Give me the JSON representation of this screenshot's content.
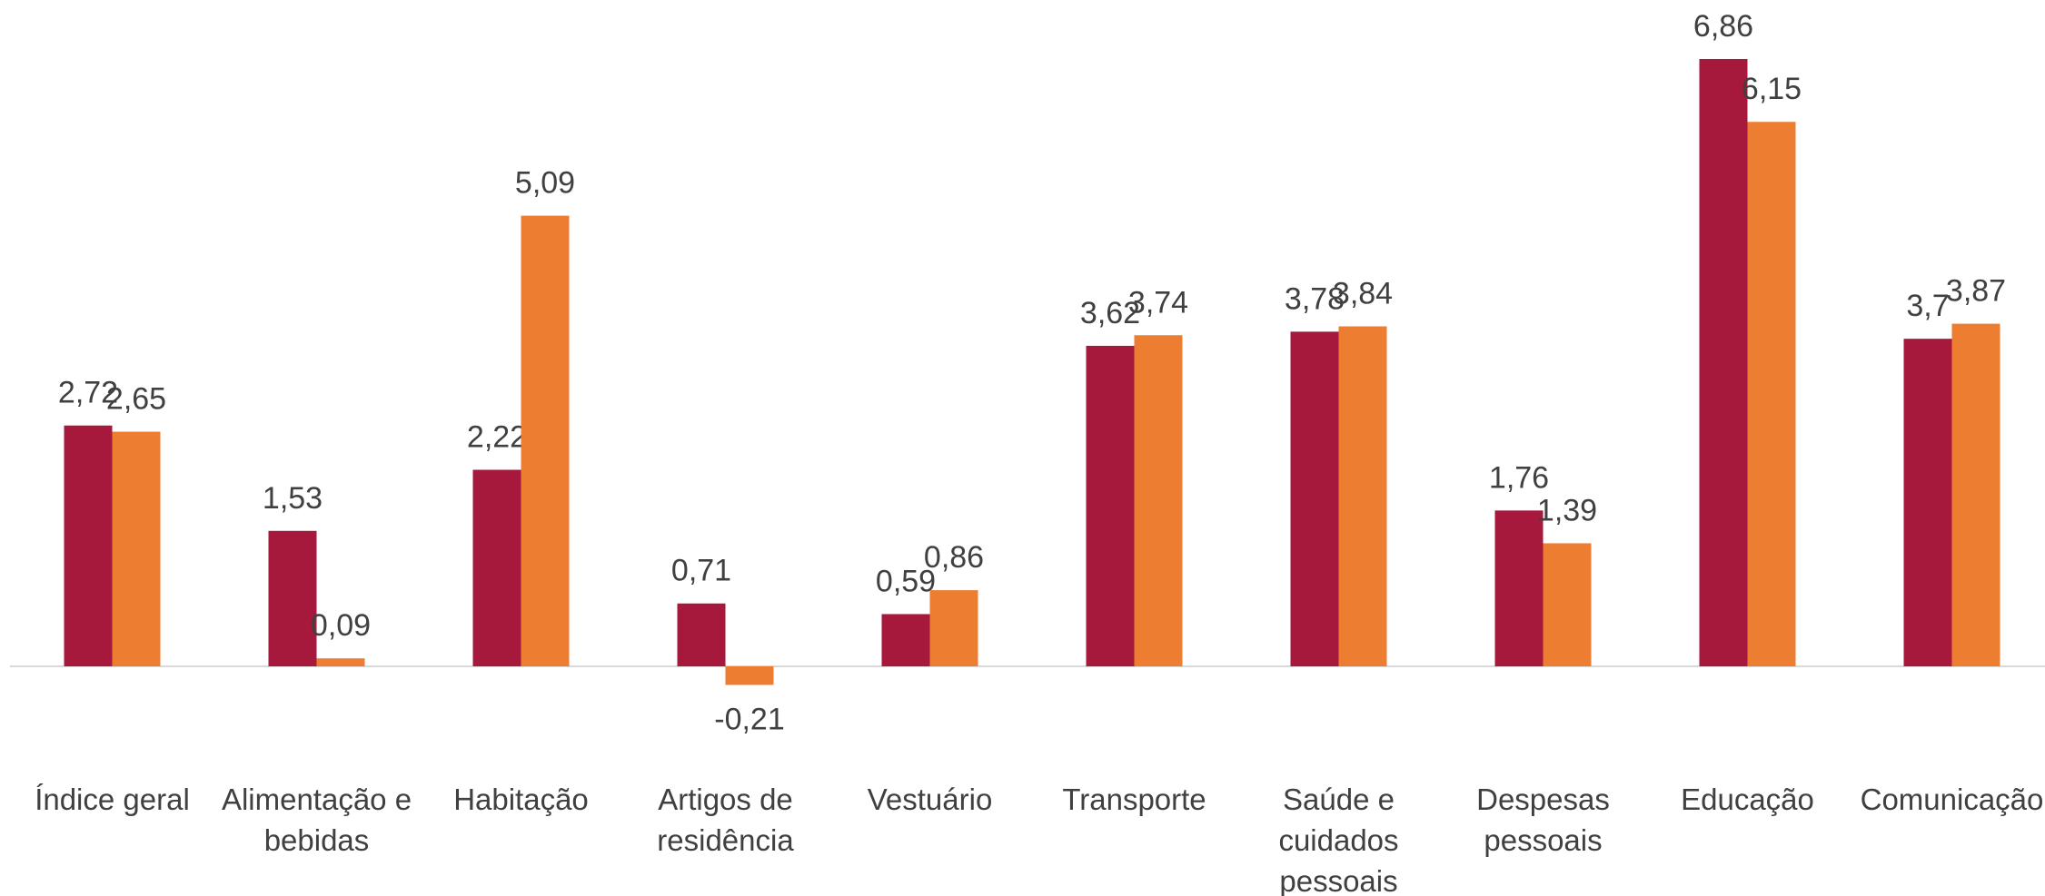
{
  "chart_data": {
    "type": "bar",
    "categories": [
      "Índice geral",
      "Alimentação e bebidas",
      "Habitação",
      "Artigos de residência",
      "Vestuário",
      "Transporte",
      "Saúde e cuidados pessoais",
      "Despesas pessoais",
      "Educação",
      "Comunicação"
    ],
    "series": [
      {
        "color": "#a6193c",
        "values": [
          2.72,
          1.53,
          2.22,
          0.71,
          0.59,
          3.62,
          3.78,
          1.76,
          6.86,
          3.7
        ],
        "value_labels": [
          "2,72",
          "1,53",
          "2,22",
          "0,71",
          "0,59",
          "3,62",
          "3,78",
          "1,76",
          "6,86",
          "3,7"
        ]
      },
      {
        "color": "#ed7d31",
        "values": [
          2.65,
          0.09,
          5.09,
          -0.21,
          0.86,
          3.74,
          3.84,
          1.39,
          6.15,
          3.87
        ],
        "value_labels": [
          "2,65",
          "0,09",
          "5,09",
          "-0,21",
          "0,86",
          "3,74",
          "3,84",
          "1,39",
          "6,15",
          "3,87"
        ]
      }
    ]
  }
}
